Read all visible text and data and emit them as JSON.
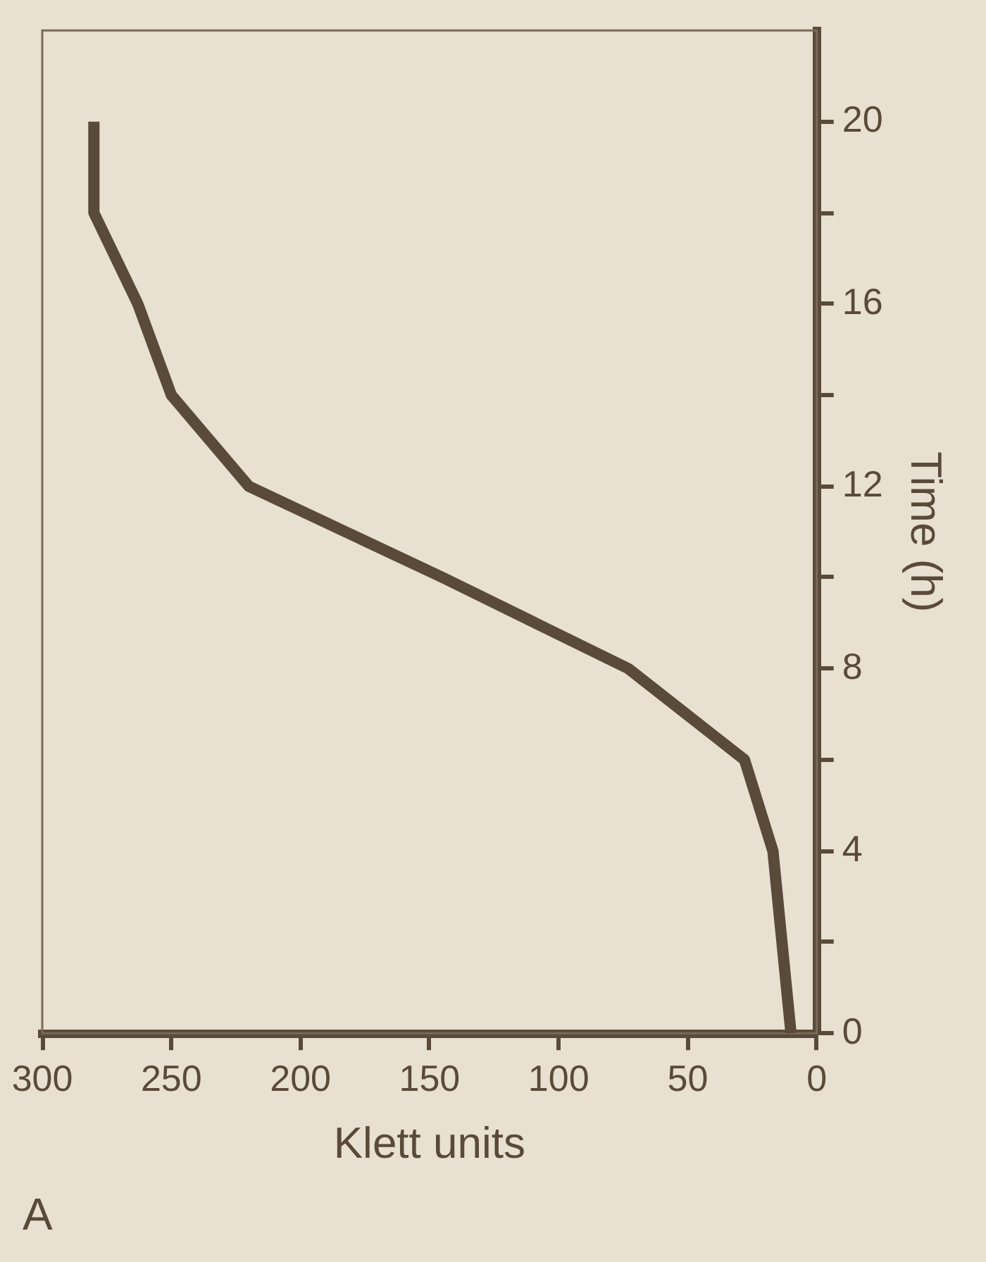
{
  "chart_data": {
    "type": "line",
    "xlabel": "Klett units",
    "ylabel": "Time (h)",
    "annotations": [
      "A"
    ],
    "x": [
      10,
      17,
      28,
      73,
      145,
      220,
      250,
      263,
      280,
      280
    ],
    "series": [
      {
        "color": "#5a4a3a",
        "values": [
          0,
          4,
          6,
          8,
          10,
          12,
          14,
          16,
          18,
          20
        ]
      }
    ],
    "xlim": [
      300,
      0
    ],
    "xticks": [
      300,
      250,
      200,
      150,
      100,
      50,
      0
    ],
    "ylim": [
      0,
      22
    ],
    "yticks": [
      0,
      {
        "value": 2,
        "label": null
      },
      4,
      {
        "value": 6,
        "label": null
      },
      8,
      {
        "value": 10,
        "label": null
      },
      12,
      {
        "value": 14,
        "label": null
      },
      16,
      {
        "value": 18,
        "label": null
      },
      20
    ],
    "grid": false,
    "legend": false,
    "marker": "none",
    "line_style": "solid"
  }
}
